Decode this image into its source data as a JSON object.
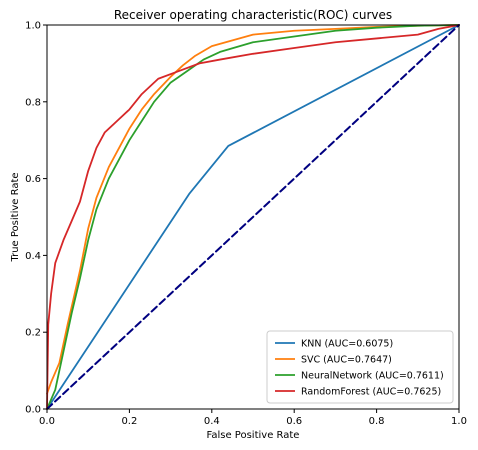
{
  "chart_data": {
    "type": "line",
    "title": "Receiver operating characteristic(ROC) curves",
    "xlabel": "False Positive Rate",
    "ylabel": "True Positive Rate",
    "xlim": [
      0.0,
      1.0
    ],
    "ylim": [
      0.0,
      1.0
    ],
    "xticks": [
      "0.0",
      "0.2",
      "0.4",
      "0.6",
      "0.8",
      "1.0"
    ],
    "yticks": [
      "0.0",
      "0.2",
      "0.4",
      "0.6",
      "0.8",
      "1.0"
    ],
    "grid": false,
    "legend_position": "lower-right",
    "series": [
      {
        "name": "KNN (AUC=0.6075)",
        "color": "#1f77b4",
        "x": [
          0.0,
          0.345,
          0.44,
          1.0
        ],
        "y": [
          0.0,
          0.56,
          0.685,
          1.0
        ]
      },
      {
        "name": "SVC (AUC=0.7647)",
        "color": "#ff7f0e",
        "x": [
          0.0,
          0.01,
          0.03,
          0.05,
          0.08,
          0.1,
          0.12,
          0.15,
          0.18,
          0.2,
          0.23,
          0.26,
          0.3,
          0.33,
          0.36,
          0.4,
          0.45,
          0.5,
          0.6,
          0.7,
          0.8,
          0.9,
          0.95,
          1.0
        ],
        "y": [
          0.04,
          0.07,
          0.12,
          0.22,
          0.36,
          0.47,
          0.55,
          0.63,
          0.69,
          0.73,
          0.78,
          0.82,
          0.865,
          0.895,
          0.92,
          0.945,
          0.96,
          0.975,
          0.985,
          0.99,
          0.995,
          0.998,
          0.999,
          1.0
        ]
      },
      {
        "name": "NeuralNetwork (AUC=0.7611)",
        "color": "#2ca02c",
        "x": [
          0.0,
          0.02,
          0.04,
          0.06,
          0.08,
          0.1,
          0.12,
          0.15,
          0.18,
          0.2,
          0.23,
          0.26,
          0.3,
          0.34,
          0.38,
          0.42,
          0.5,
          0.6,
          0.7,
          0.8,
          0.9,
          1.0
        ],
        "y": [
          0.0,
          0.05,
          0.15,
          0.25,
          0.34,
          0.44,
          0.52,
          0.6,
          0.66,
          0.7,
          0.75,
          0.8,
          0.85,
          0.88,
          0.91,
          0.93,
          0.955,
          0.97,
          0.985,
          0.993,
          0.998,
          1.0
        ]
      },
      {
        "name": "RandomForest (AUC=0.7625)",
        "color": "#d62728",
        "x": [
          0.0,
          0.003,
          0.01,
          0.02,
          0.04,
          0.06,
          0.08,
          0.1,
          0.12,
          0.14,
          0.17,
          0.2,
          0.23,
          0.27,
          0.32,
          0.37,
          0.42,
          0.5,
          0.6,
          0.7,
          0.8,
          0.9,
          0.95,
          1.0
        ],
        "y": [
          0.0,
          0.22,
          0.3,
          0.38,
          0.44,
          0.49,
          0.54,
          0.62,
          0.68,
          0.72,
          0.75,
          0.78,
          0.82,
          0.86,
          0.88,
          0.9,
          0.91,
          0.925,
          0.94,
          0.955,
          0.965,
          0.975,
          0.99,
          1.0
        ]
      },
      {
        "name": "",
        "color": "#000080",
        "dashed": true,
        "x": [
          0.0,
          1.0
        ],
        "y": [
          0.0,
          1.0
        ]
      }
    ]
  }
}
